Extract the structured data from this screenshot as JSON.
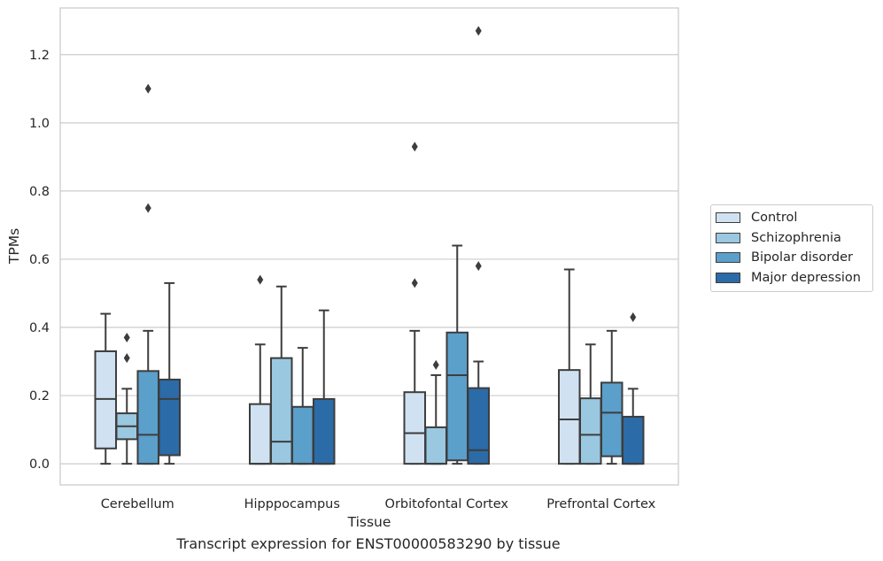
{
  "chart_data": {
    "type": "box",
    "xlabel": "Tissue",
    "ylabel": "TPMs",
    "caption": "Transcript expression for ENST00000583290 by tissue",
    "categories": [
      "Cerebellum",
      "Hipppocampus",
      "Orbitofontal Cortex",
      "Prefrontal Cortex"
    ],
    "ylim": [
      -0.062,
      1.337
    ],
    "yticks": [
      "0.0",
      "0.2",
      "0.4",
      "0.6",
      "0.8",
      "1.0",
      "1.2"
    ],
    "grid": true,
    "legend_position": "right",
    "series": [
      {
        "name": "Control",
        "color": "#d0e1f2",
        "boxes": [
          {
            "whislo": 0.0,
            "q1": 0.045,
            "med": 0.19,
            "q3": 0.33,
            "whishi": 0.44,
            "fliers": []
          },
          {
            "whislo": 0.0,
            "q1": 0.0,
            "med": 0.0,
            "q3": 0.175,
            "whishi": 0.35,
            "fliers": [
              0.54
            ]
          },
          {
            "whislo": 0.0,
            "q1": 0.0,
            "med": 0.09,
            "q3": 0.21,
            "whishi": 0.39,
            "fliers": [
              0.53,
              0.93
            ]
          },
          {
            "whislo": 0.0,
            "q1": 0.0,
            "med": 0.13,
            "q3": 0.275,
            "whishi": 0.57,
            "fliers": []
          }
        ]
      },
      {
        "name": "Schizophrenia",
        "color": "#9ac8e0",
        "boxes": [
          {
            "whislo": 0.0,
            "q1": 0.072,
            "med": 0.11,
            "q3": 0.148,
            "whishi": 0.22,
            "fliers": [
              0.31,
              0.37
            ]
          },
          {
            "whislo": 0.0,
            "q1": 0.0,
            "med": 0.065,
            "q3": 0.31,
            "whishi": 0.52,
            "fliers": []
          },
          {
            "whislo": 0.0,
            "q1": 0.0,
            "med": 0.0,
            "q3": 0.107,
            "whishi": 0.26,
            "fliers": [
              0.29
            ]
          },
          {
            "whislo": 0.0,
            "q1": 0.0,
            "med": 0.085,
            "q3": 0.192,
            "whishi": 0.35,
            "fliers": []
          }
        ]
      },
      {
        "name": "Bipolar disorder",
        "color": "#5b9fcb",
        "boxes": [
          {
            "whislo": 0.0,
            "q1": 0.0,
            "med": 0.085,
            "q3": 0.272,
            "whishi": 0.39,
            "fliers": [
              0.75,
              1.1
            ]
          },
          {
            "whislo": 0.0,
            "q1": 0.0,
            "med": 0.0,
            "q3": 0.167,
            "whishi": 0.34,
            "fliers": []
          },
          {
            "whislo": 0.0,
            "q1": 0.01,
            "med": 0.26,
            "q3": 0.385,
            "whishi": 0.64,
            "fliers": []
          },
          {
            "whislo": 0.0,
            "q1": 0.022,
            "med": 0.15,
            "q3": 0.238,
            "whishi": 0.39,
            "fliers": []
          }
        ]
      },
      {
        "name": "Major depression",
        "color": "#2b6ba8",
        "boxes": [
          {
            "whislo": 0.0,
            "q1": 0.025,
            "med": 0.19,
            "q3": 0.247,
            "whishi": 0.53,
            "fliers": []
          },
          {
            "whislo": 0.0,
            "q1": 0.0,
            "med": 0.0,
            "q3": 0.19,
            "whishi": 0.45,
            "fliers": []
          },
          {
            "whislo": 0.0,
            "q1": 0.0,
            "med": 0.04,
            "q3": 0.222,
            "whishi": 0.3,
            "fliers": [
              0.58,
              1.27
            ]
          },
          {
            "whislo": 0.0,
            "q1": 0.0,
            "med": 0.0,
            "q3": 0.138,
            "whishi": 0.22,
            "fliers": [
              0.43
            ]
          }
        ]
      }
    ]
  }
}
